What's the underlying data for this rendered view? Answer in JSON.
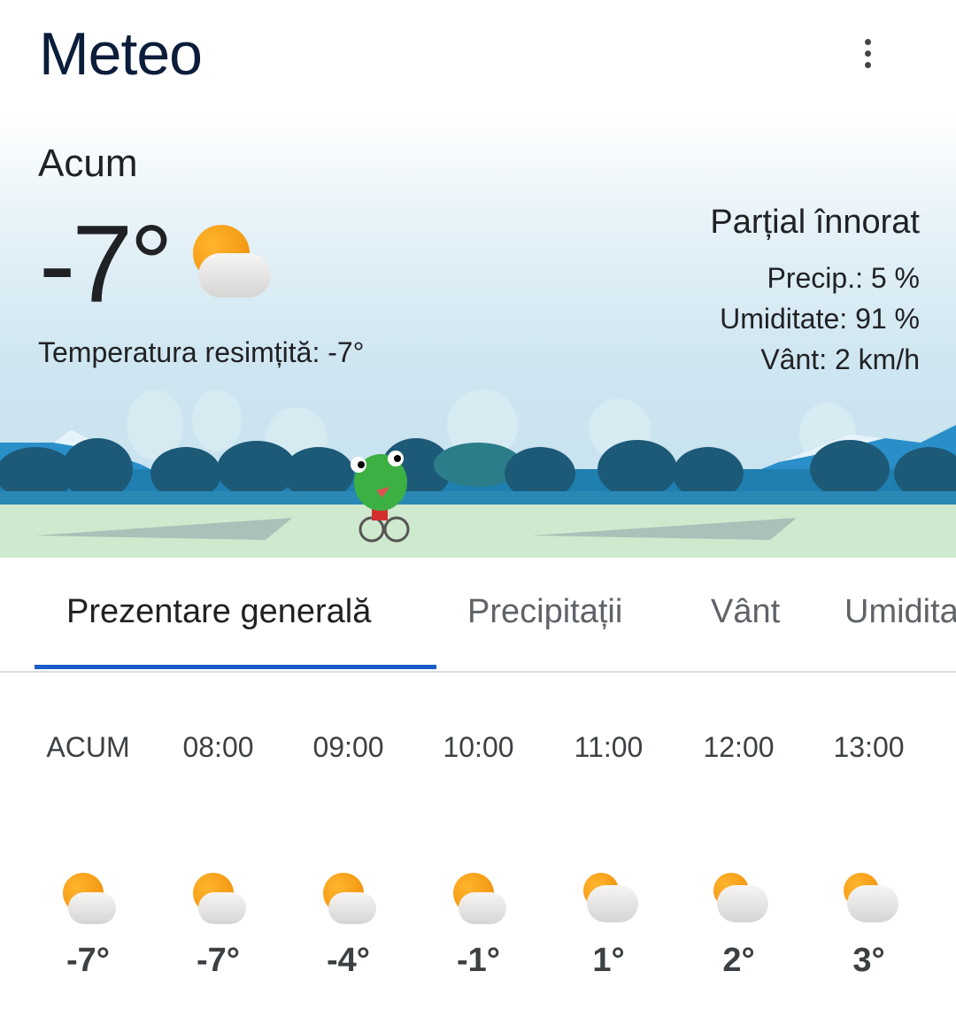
{
  "app": {
    "title": "Meteo",
    "menu_icon": "more-vert-icon"
  },
  "current": {
    "label": "Acum",
    "temp": "-7°",
    "icon": "partly-cloudy-icon",
    "feels_like": "Temperatura resimțită: -7°",
    "condition": "Parțial înnorat",
    "precip": "Precip.: 5 %",
    "humidity": "Umiditate: 91 %",
    "wind": "Vânt: 2 km/h"
  },
  "tabs": [
    {
      "label": "Prezentare generală",
      "active": true
    },
    {
      "label": "Precipitații",
      "active": false
    },
    {
      "label": "Vânt",
      "active": false
    },
    {
      "label": "Umiditate",
      "active": false
    }
  ],
  "hourly": [
    {
      "time": "ACUM",
      "temp": "-7°",
      "icon": "partly-cloudy-icon"
    },
    {
      "time": "08:00",
      "temp": "-7°",
      "icon": "partly-cloudy-icon"
    },
    {
      "time": "09:00",
      "temp": "-4°",
      "icon": "partly-cloudy-icon"
    },
    {
      "time": "10:00",
      "temp": "-1°",
      "icon": "partly-cloudy-icon"
    },
    {
      "time": "11:00",
      "temp": "1°",
      "icon": "mostly-cloudy-icon"
    },
    {
      "time": "12:00",
      "temp": "2°",
      "icon": "mostly-cloudy-icon"
    },
    {
      "time": "13:00",
      "temp": "3°",
      "icon": "mostly-cloudy-icon"
    }
  ],
  "colors": {
    "accent": "#1a5dc8",
    "title": "#0b1d3a"
  }
}
